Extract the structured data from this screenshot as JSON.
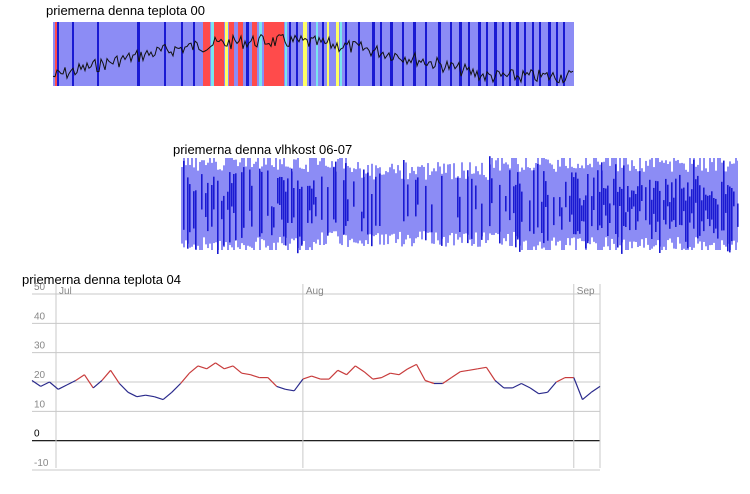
{
  "colors": {
    "band_background": "#8c8cf5",
    "dark_blue": "#1a1ad2",
    "red": "#ff4b4b",
    "yellow": "#ffff64",
    "cyan": "#78e6f0",
    "line_warm": "#c83c3c",
    "line_cool": "#2a2a8c",
    "grid": "#c8c8c8",
    "zero_line": "#000000"
  },
  "chart_data": [
    {
      "type": "heatmap",
      "title": "priemerna denna teplota 00",
      "note_stripes": [
        "dark blue",
        "red",
        "yellow",
        "cyan"
      ],
      "overlay_line": "black daily temperature trace"
    },
    {
      "type": "area",
      "title": "priemerna denna vlhkost 06-07",
      "series_color": "dark blue over light blue band"
    },
    {
      "type": "line",
      "title": "priemerna denna teplota 04",
      "xlabel": "",
      "ylabel": "",
      "months": [
        "Jul",
        "Aug",
        "Sep"
      ],
      "ylim": [
        -10,
        50
      ],
      "yticks": [
        -10,
        0,
        10,
        20,
        30,
        40,
        50
      ],
      "grid": true,
      "x_days": [
        1,
        2,
        3,
        4,
        5,
        6,
        7,
        8,
        9,
        10,
        11,
        12,
        13,
        14,
        15,
        16,
        17,
        18,
        19,
        20,
        21,
        22,
        23,
        24,
        25,
        26,
        27,
        28,
        29,
        30,
        31,
        32,
        33,
        34,
        35,
        36,
        37,
        38,
        39,
        40,
        41,
        42,
        43,
        44,
        45,
        46,
        47,
        48,
        49,
        50,
        51,
        52,
        53,
        54,
        55,
        56,
        57,
        58,
        59,
        60,
        61,
        62,
        63,
        64,
        65,
        66
      ],
      "values": [
        20.5,
        18.5,
        20,
        17.5,
        19,
        20.5,
        22.5,
        18,
        20.5,
        24,
        19.5,
        16.5,
        15,
        15.5,
        15,
        14,
        16.5,
        19.5,
        23,
        25.5,
        24.5,
        26.5,
        24.5,
        25.5,
        23,
        22.5,
        21.5,
        21.5,
        18.5,
        17.5,
        17,
        21,
        22,
        21,
        21,
        24,
        22.5,
        25.5,
        23.5,
        21,
        21.5,
        23,
        22.5,
        24.5,
        26,
        20.5,
        19.5,
        19.5,
        21.5,
        23.5,
        24,
        24.5,
        25,
        20.5,
        18,
        18,
        19.5,
        18,
        16,
        16.5,
        20,
        21.5,
        21.5,
        14,
        16.5,
        18.5
      ]
    }
  ]
}
